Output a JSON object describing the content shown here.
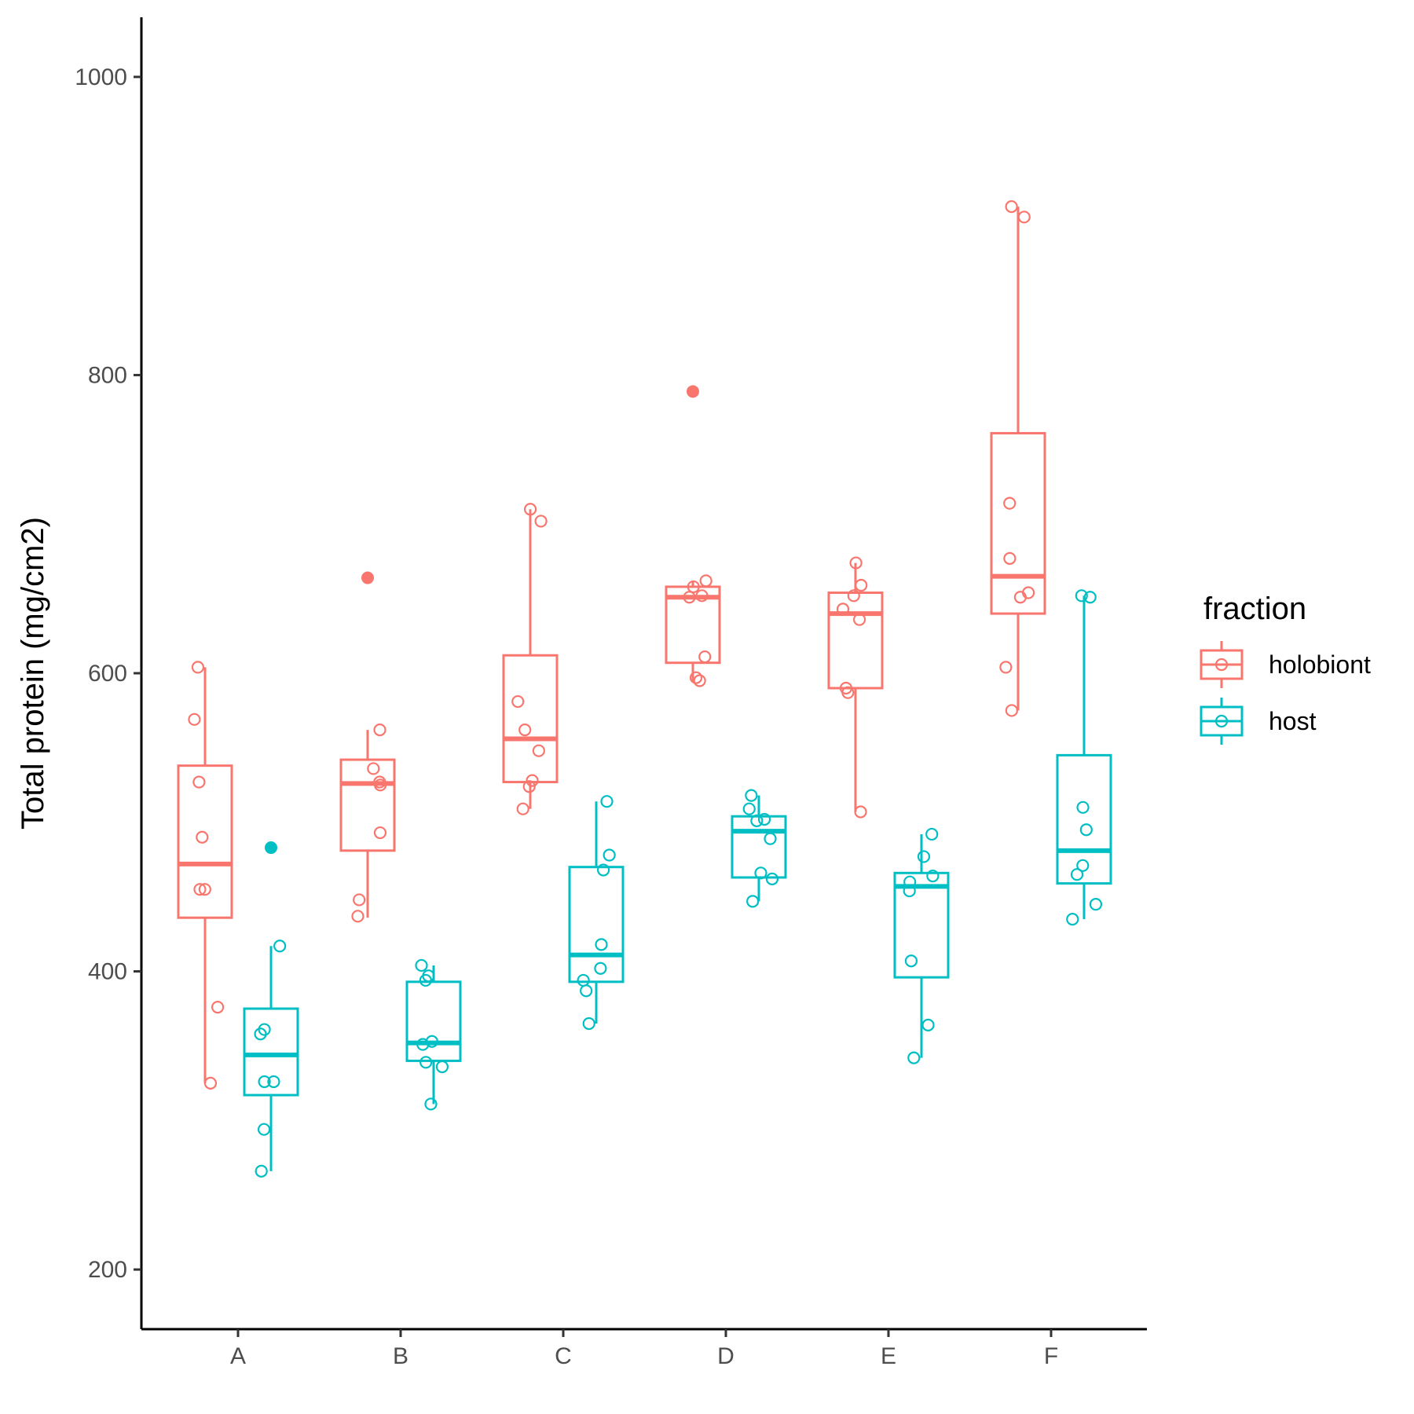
{
  "chart_data": {
    "type": "boxplot",
    "xlabel": "",
    "ylabel": "Total protein (mg/cm2)",
    "ylim": [
      160,
      1040
    ],
    "yticks": [
      200,
      400,
      600,
      800,
      1000
    ],
    "categories": [
      "A",
      "B",
      "C",
      "D",
      "E",
      "F"
    ],
    "grid": false,
    "legend": {
      "title": "fraction",
      "position": "right",
      "entries": [
        {
          "name": "holobiont",
          "color": "#F8766D"
        },
        {
          "name": "host",
          "color": "#00BFC4"
        }
      ]
    },
    "series": [
      {
        "name": "holobiont",
        "color": "#F8766D",
        "boxes": [
          {
            "category": "A",
            "whisker_low": 325,
            "q1": 436,
            "median": 472,
            "q3": 538,
            "whisker_high": 604,
            "outliers": []
          },
          {
            "category": "B",
            "whisker_low": 436,
            "q1": 481,
            "median": 526,
            "q3": 542,
            "whisker_high": 562,
            "outliers": [
              664
            ]
          },
          {
            "category": "C",
            "whisker_low": 509,
            "q1": 527,
            "median": 556,
            "q3": 612,
            "whisker_high": 710,
            "outliers": []
          },
          {
            "category": "D",
            "whisker_low": 594,
            "q1": 607,
            "median": 651,
            "q3": 658,
            "whisker_high": 662,
            "outliers": [
              789
            ]
          },
          {
            "category": "E",
            "whisker_low": 507,
            "q1": 590,
            "median": 640,
            "q3": 654,
            "whisker_high": 674,
            "outliers": []
          },
          {
            "category": "F",
            "whisker_low": 575,
            "q1": 640,
            "median": 665,
            "q3": 761,
            "whisker_high": 913,
            "outliers": []
          }
        ],
        "points": [
          {
            "category": "A",
            "values": [
              604,
              569,
              527,
              490,
              455,
              455,
              376,
              325
            ]
          },
          {
            "category": "B",
            "values": [
              562,
              536,
              527,
              525,
              493,
              448,
              437
            ]
          },
          {
            "category": "C",
            "values": [
              710,
              702,
              581,
              562,
              548,
              528,
              524,
              509
            ]
          },
          {
            "category": "D",
            "values": [
              662,
              658,
              652,
              651,
              611,
              597,
              595
            ]
          },
          {
            "category": "E",
            "values": [
              674,
              659,
              652,
              643,
              636,
              590,
              587,
              507
            ]
          },
          {
            "category": "F",
            "values": [
              913,
              906,
              714,
              677,
              654,
              651,
              604,
              575
            ]
          }
        ]
      },
      {
        "name": "host",
        "color": "#00BFC4",
        "boxes": [
          {
            "category": "A",
            "whisker_low": 266,
            "q1": 317,
            "median": 344,
            "q3": 375,
            "whisker_high": 417,
            "outliers": [
              483
            ]
          },
          {
            "category": "B",
            "whisker_low": 311,
            "q1": 340,
            "median": 352,
            "q3": 393,
            "whisker_high": 404,
            "outliers": []
          },
          {
            "category": "C",
            "whisker_low": 365,
            "q1": 393,
            "median": 411,
            "q3": 470,
            "whisker_high": 514,
            "outliers": []
          },
          {
            "category": "D",
            "whisker_low": 447,
            "q1": 463,
            "median": 494,
            "q3": 504,
            "whisker_high": 518,
            "outliers": []
          },
          {
            "category": "E",
            "whisker_low": 342,
            "q1": 396,
            "median": 457,
            "q3": 466,
            "whisker_high": 492,
            "outliers": []
          },
          {
            "category": "F",
            "whisker_low": 435,
            "q1": 459,
            "median": 481,
            "q3": 545,
            "whisker_high": 652,
            "outliers": []
          }
        ],
        "points": [
          {
            "category": "A",
            "values": [
              417,
              361,
              358,
              326,
              326,
              294,
              266
            ]
          },
          {
            "category": "B",
            "values": [
              404,
              397,
              394,
              353,
              351,
              339,
              336,
              311
            ]
          },
          {
            "category": "C",
            "values": [
              514,
              478,
              468,
              418,
              402,
              394,
              387,
              365
            ]
          },
          {
            "category": "D",
            "values": [
              518,
              509,
              502,
              501,
              489,
              466,
              462,
              447
            ]
          },
          {
            "category": "E",
            "values": [
              492,
              477,
              464,
              460,
              454,
              407,
              364,
              342
            ]
          },
          {
            "category": "F",
            "values": [
              652,
              651,
              510,
              495,
              471,
              465,
              445,
              435
            ]
          }
        ]
      }
    ]
  }
}
